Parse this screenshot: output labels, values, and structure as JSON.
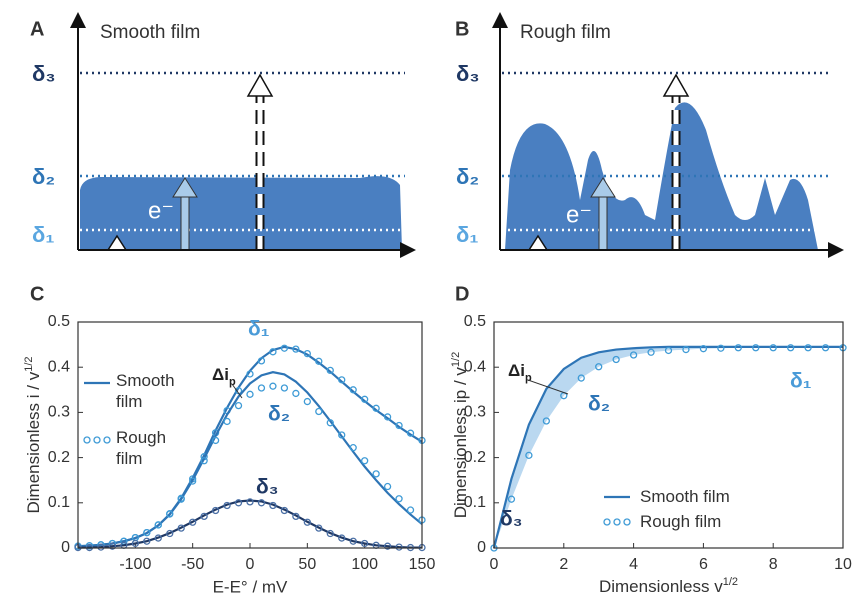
{
  "panels": {
    "A": {
      "letter": "A",
      "title": "Smooth film"
    },
    "B": {
      "letter": "B",
      "title": "Rough film"
    }
  },
  "diagram": {
    "levels": [
      "δ₁",
      "δ₂",
      "δ₃"
    ],
    "electron": "e⁻"
  },
  "chart_data": [
    {
      "type": "line",
      "letter": "C",
      "xlabel": "E-E° / mV",
      "ylabel": "Dimensionless i / v",
      "ylabel_sup": "1/2",
      "x": [
        -150,
        -140,
        -130,
        -120,
        -110,
        -100,
        -90,
        -80,
        -70,
        -60,
        -50,
        -40,
        -30,
        -20,
        -10,
        0,
        10,
        20,
        30,
        40,
        50,
        60,
        70,
        80,
        90,
        100,
        110,
        120,
        130,
        140,
        150
      ],
      "xlim": [
        -150,
        150
      ],
      "xticks": [
        -100,
        -50,
        0,
        50,
        100,
        150
      ],
      "ylim": [
        0,
        0.5
      ],
      "yticks": [
        0,
        0.1,
        0.2,
        0.3,
        0.4,
        0.5
      ],
      "labels": [
        "δ₁",
        "δ₂",
        "δ₃"
      ],
      "delta": {
        "text": "Δi",
        "sub": "p"
      },
      "series": [
        {
          "name": "Smooth film",
          "style": "line",
          "color": "#2e75b6",
          "values": [
            0.004,
            0.005,
            0.007,
            0.01,
            0.015,
            0.022,
            0.033,
            0.05,
            0.075,
            0.11,
            0.155,
            0.205,
            0.26,
            0.31,
            0.355,
            0.392,
            0.42,
            0.438,
            0.445,
            0.44,
            0.428,
            0.41,
            0.39,
            0.368,
            0.346,
            0.325,
            0.305,
            0.287,
            0.268,
            0.251,
            0.235
          ]
        },
        {
          "name": "Rough film",
          "style": "markers",
          "color": "#3f9bd6",
          "values": [
            0.004,
            0.005,
            0.007,
            0.01,
            0.015,
            0.023,
            0.034,
            0.051,
            0.076,
            0.11,
            0.153,
            0.202,
            0.255,
            0.304,
            0.348,
            0.385,
            0.414,
            0.434,
            0.442,
            0.44,
            0.43,
            0.413,
            0.393,
            0.372,
            0.35,
            0.329,
            0.309,
            0.29,
            0.271,
            0.254,
            0.238
          ]
        },
        {
          "name": "Smooth film",
          "style": "line",
          "color": "#2e75b6",
          "values": [
            0.004,
            0.005,
            0.007,
            0.01,
            0.015,
            0.022,
            0.033,
            0.05,
            0.074,
            0.108,
            0.15,
            0.198,
            0.248,
            0.295,
            0.335,
            0.364,
            0.382,
            0.389,
            0.384,
            0.368,
            0.344,
            0.314,
            0.281,
            0.247,
            0.213,
            0.18,
            0.15,
            0.122,
            0.097,
            0.074,
            0.053
          ]
        },
        {
          "name": "Rough film",
          "style": "markers",
          "color": "#3f9bd6",
          "values": [
            0.004,
            0.005,
            0.007,
            0.01,
            0.015,
            0.023,
            0.034,
            0.051,
            0.075,
            0.108,
            0.148,
            0.193,
            0.238,
            0.28,
            0.315,
            0.34,
            0.354,
            0.358,
            0.354,
            0.342,
            0.324,
            0.302,
            0.277,
            0.25,
            0.222,
            0.193,
            0.164,
            0.136,
            0.109,
            0.084,
            0.062
          ]
        },
        {
          "name": "Smooth film",
          "style": "line",
          "color": "#1f3864",
          "values": [
            0.001,
            0.001,
            0.002,
            0.004,
            0.006,
            0.01,
            0.015,
            0.023,
            0.033,
            0.045,
            0.058,
            0.072,
            0.085,
            0.096,
            0.103,
            0.105,
            0.103,
            0.096,
            0.085,
            0.072,
            0.058,
            0.045,
            0.033,
            0.023,
            0.015,
            0.01,
            0.006,
            0.004,
            0.002,
            0.001,
            0.001
          ]
        },
        {
          "name": "Rough film",
          "style": "markers",
          "color": "#4a6fa5",
          "values": [
            0.001,
            0.001,
            0.002,
            0.004,
            0.006,
            0.01,
            0.015,
            0.022,
            0.032,
            0.044,
            0.057,
            0.07,
            0.083,
            0.094,
            0.1,
            0.102,
            0.1,
            0.094,
            0.083,
            0.07,
            0.057,
            0.044,
            0.032,
            0.022,
            0.015,
            0.01,
            0.006,
            0.004,
            0.002,
            0.001,
            0.001
          ]
        }
      ]
    },
    {
      "type": "line",
      "letter": "D",
      "xlabel": "Dimensionless v",
      "xlabel_sup": "1/2",
      "ylabel": "Dimensionless ip / v",
      "ylabel_sup": "1/2",
      "x": [
        0,
        0.5,
        1,
        1.5,
        2,
        2.5,
        3,
        3.5,
        4,
        4.5,
        5,
        5.5,
        6,
        6.5,
        7,
        7.5,
        8,
        8.5,
        9,
        9.5,
        10
      ],
      "xlim": [
        0,
        10
      ],
      "xticks": [
        0,
        2,
        4,
        6,
        8,
        10
      ],
      "ylim": [
        0,
        0.5
      ],
      "yticks": [
        0,
        0.1,
        0.2,
        0.3,
        0.4,
        0.5
      ],
      "labels": [
        "δ₁",
        "δ₂",
        "δ₃"
      ],
      "delta": {
        "text": "Δi",
        "sub": "p"
      },
      "shade": true,
      "series": [
        {
          "name": "Smooth film",
          "style": "line",
          "color": "#2e75b6",
          "values": [
            0,
            0.153,
            0.273,
            0.352,
            0.396,
            0.421,
            0.433,
            0.439,
            0.442,
            0.444,
            0.445,
            0.445,
            0.445,
            0.445,
            0.445,
            0.445,
            0.445,
            0.445,
            0.445,
            0.445,
            0.445
          ]
        },
        {
          "name": "Rough film",
          "style": "markers",
          "color": "#3f9bd6",
          "values": [
            0,
            0.108,
            0.205,
            0.281,
            0.337,
            0.376,
            0.401,
            0.417,
            0.427,
            0.433,
            0.437,
            0.439,
            0.441,
            0.442,
            0.443,
            0.443,
            0.443,
            0.443,
            0.443,
            0.443,
            0.443
          ]
        }
      ]
    }
  ]
}
